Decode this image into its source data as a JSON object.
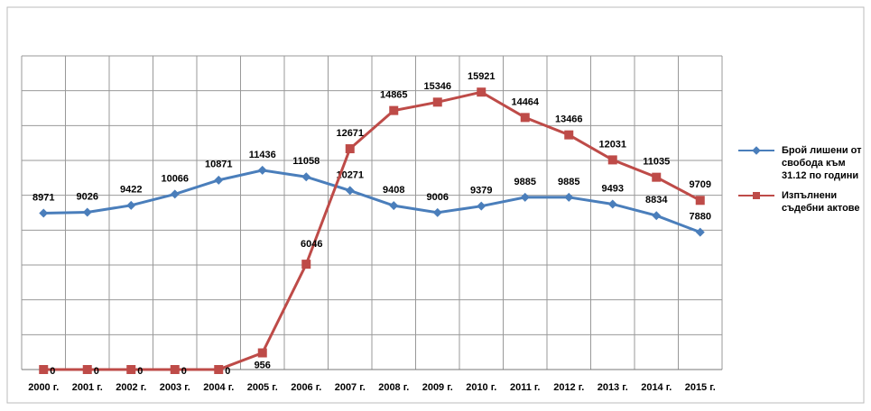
{
  "chart_data": {
    "type": "line",
    "categories": [
      "2000 г.",
      "2001 г.",
      "2002 г.",
      "2003 г.",
      "2004 г.",
      "2005 г.",
      "2006 г.",
      "2007 г.",
      "2008 г.",
      "2009 г.",
      "2010 г.",
      "2011 г.",
      "2012 г.",
      "2013 г.",
      "2014 г.",
      "2015 г."
    ],
    "series": [
      {
        "name": "Брой лишени от свобода към 31.12 по години",
        "color": "#4a7ebb",
        "marker": "diamond",
        "values": [
          8971,
          9026,
          9422,
          10066,
          10871,
          11436,
          11058,
          10271,
          9408,
          9006,
          9379,
          9885,
          9885,
          9493,
          8834,
          7880
        ]
      },
      {
        "name": "Изпълнени съдебни актове",
        "color": "#be4b48",
        "marker": "square",
        "values": [
          0,
          0,
          0,
          0,
          0,
          956,
          6046,
          12671,
          14865,
          15346,
          15921,
          14464,
          13466,
          12031,
          11035,
          9709
        ]
      }
    ],
    "ylim": [
      0,
      18000
    ],
    "yticks": [
      0,
      2000,
      4000,
      6000,
      8000,
      10000,
      12000,
      14000,
      16000,
      18000
    ],
    "grid": true,
    "legend": "right"
  }
}
